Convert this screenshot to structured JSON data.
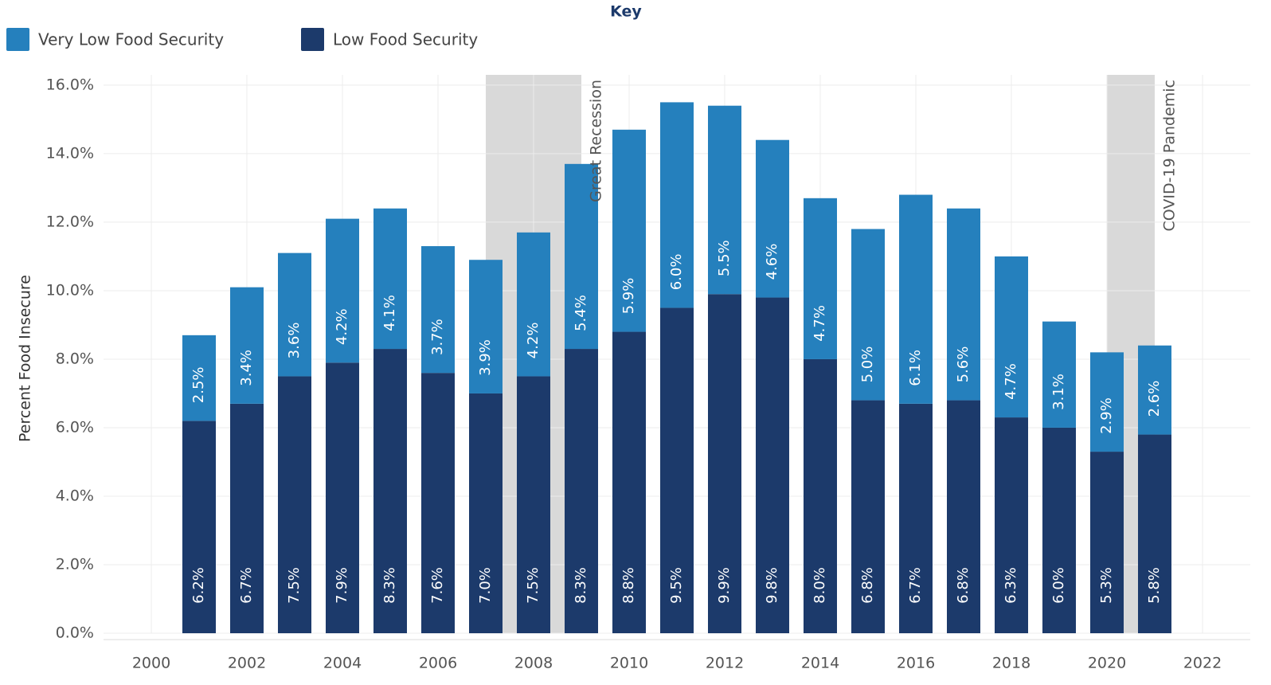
{
  "chart_data": {
    "type": "stacked_bar",
    "legend_title": "Key",
    "ylabel": "Percent Food Insecure",
    "x": [
      2001,
      2002,
      2003,
      2004,
      2005,
      2006,
      2007,
      2008,
      2009,
      2010,
      2011,
      2012,
      2013,
      2014,
      2015,
      2016,
      2017,
      2018,
      2019,
      2020,
      2021
    ],
    "series": [
      {
        "name": "Low Food Security",
        "color": "#1c3a6b",
        "values": [
          6.2,
          6.7,
          7.5,
          7.9,
          8.3,
          7.6,
          7.0,
          7.5,
          8.3,
          8.8,
          9.5,
          9.9,
          9.8,
          8.0,
          6.8,
          6.7,
          6.8,
          6.3,
          6.0,
          5.3,
          5.8
        ],
        "value_labels": [
          "6.2%",
          "6.7%",
          "7.5%",
          "7.9%",
          "8.3%",
          "7.6%",
          "7.0%",
          "7.5%",
          "8.3%",
          "8.8%",
          "9.5%",
          "9.9%",
          "9.8%",
          "8.0%",
          "6.8%",
          "6.7%",
          "6.8%",
          "6.3%",
          "6.0%",
          "5.3%",
          "5.8%"
        ]
      },
      {
        "name": "Very Low Food Security",
        "color": "#2580bd",
        "values": [
          2.5,
          3.4,
          3.6,
          4.2,
          4.1,
          3.7,
          3.9,
          4.2,
          5.4,
          5.9,
          6.0,
          5.5,
          4.6,
          4.7,
          5.0,
          6.1,
          5.6,
          4.7,
          3.1,
          2.9,
          2.6
        ],
        "value_labels": [
          "2.5%",
          "3.4%",
          "3.6%",
          "4.2%",
          "4.1%",
          "3.7%",
          "3.9%",
          "4.2%",
          "5.4%",
          "5.9%",
          "6.0%",
          "5.5%",
          "4.6%",
          "4.7%",
          "5.0%",
          "6.1%",
          "5.6%",
          "4.7%",
          "3.1%",
          "2.9%",
          "2.6%"
        ]
      }
    ],
    "shaded_regions": [
      {
        "label": "Great Recession",
        "x": [
          2007,
          2009
        ],
        "color": "#d9d9d9"
      },
      {
        "label": "COVID-19 Pandemic",
        "x": [
          2020,
          2021
        ],
        "color": "#d9d9d9"
      }
    ],
    "xlim": [
      1999,
      2023
    ],
    "xticks": [
      2000,
      2002,
      2004,
      2006,
      2008,
      2010,
      2012,
      2014,
      2016,
      2018,
      2020,
      2022
    ],
    "ylim": [
      0,
      16.3
    ],
    "yticks": [
      {
        "value": 0,
        "label": "0.0%"
      },
      {
        "value": 2,
        "label": "2.0%"
      },
      {
        "value": 4,
        "label": "4.0%"
      },
      {
        "value": 6,
        "label": "6.0%"
      },
      {
        "value": 8,
        "label": "8.0%"
      },
      {
        "value": 10,
        "label": "10.0%"
      },
      {
        "value": 12,
        "label": "12.0%"
      },
      {
        "value": 14,
        "label": "14.0%"
      },
      {
        "value": 16,
        "label": "16.0%"
      }
    ],
    "grid": true
  }
}
